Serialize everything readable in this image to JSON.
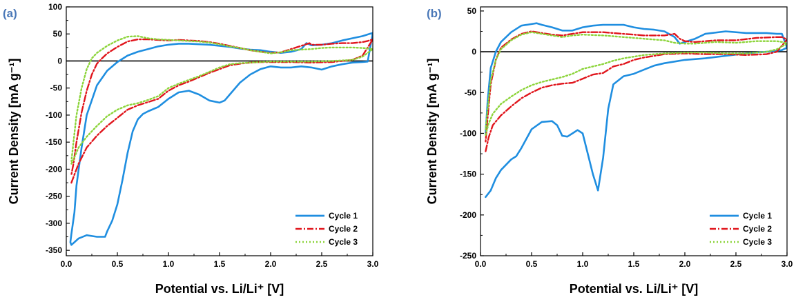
{
  "chart_data": [
    {
      "panel_label": "(a)",
      "type": "line",
      "xlabel": "Potential vs. Li/Li⁺ [V]",
      "ylabel": "Current Density [mA g⁻¹]",
      "xlim": [
        0.0,
        3.0
      ],
      "ylim": [
        -360,
        100
      ],
      "xticks": [
        0.0,
        0.5,
        1.0,
        1.5,
        2.0,
        2.5,
        3.0
      ],
      "xtick_labels": [
        "0.0",
        "0.5",
        "1.0",
        "1.5",
        "2.0",
        "2.5",
        "3.0"
      ],
      "yticks": [
        -350,
        -300,
        -250,
        -200,
        -150,
        -100,
        -50,
        0,
        50,
        100
      ],
      "ytick_labels": [
        "-350",
        "-300",
        "-250",
        "-200",
        "-150",
        "-100",
        "-50",
        "0",
        "50",
        "100"
      ],
      "zero_line": true,
      "grid": false,
      "legend_position": "bottom-right",
      "series": [
        {
          "name": "Cycle 1",
          "color": "#1f8ee0",
          "style": "solid",
          "x": [
            0.05,
            0.08,
            0.12,
            0.2,
            0.3,
            0.38,
            0.4,
            0.45,
            0.5,
            0.55,
            0.6,
            0.65,
            0.7,
            0.75,
            0.8,
            0.9,
            1.0,
            1.1,
            1.2,
            1.3,
            1.4,
            1.5,
            1.55,
            1.6,
            1.7,
            1.8,
            1.9,
            2.0,
            2.1,
            2.2,
            2.3,
            2.4,
            2.5,
            2.6,
            2.7,
            2.8,
            2.9,
            2.95,
            3.0,
            2.95,
            2.9,
            2.8,
            2.7,
            2.6,
            2.5,
            2.4,
            2.35,
            2.3,
            2.2,
            2.1,
            2.0,
            1.9,
            1.8,
            1.7,
            1.6,
            1.5,
            1.4,
            1.3,
            1.2,
            1.1,
            1.0,
            0.9,
            0.8,
            0.7,
            0.6,
            0.5,
            0.4,
            0.3,
            0.2,
            0.15,
            0.1,
            0.08,
            0.05,
            0.04,
            0.05
          ],
          "y": [
            -340,
            -335,
            -328,
            -322,
            -325,
            -325,
            -315,
            -295,
            -265,
            -220,
            -170,
            -130,
            -108,
            -98,
            -93,
            -85,
            -70,
            -58,
            -55,
            -62,
            -73,
            -77,
            -73,
            -62,
            -40,
            -25,
            -15,
            -10,
            -12,
            -12,
            -10,
            -12,
            -16,
            -10,
            -6,
            -3,
            -2,
            -1,
            52,
            49,
            46,
            42,
            38,
            33,
            30,
            29,
            33,
            22,
            17,
            15,
            17,
            20,
            21,
            23,
            26,
            28,
            30,
            31,
            32,
            32,
            30,
            27,
            22,
            17,
            10,
            -2,
            -18,
            -45,
            -100,
            -160,
            -230,
            -280,
            -320,
            -335,
            -340
          ]
        },
        {
          "name": "Cycle 2",
          "color": "#e0151c",
          "style": "dashdot",
          "x": [
            0.05,
            0.08,
            0.12,
            0.2,
            0.3,
            0.4,
            0.5,
            0.6,
            0.7,
            0.8,
            0.9,
            1.0,
            1.1,
            1.2,
            1.3,
            1.4,
            1.5,
            1.6,
            1.7,
            1.8,
            1.9,
            2.0,
            2.2,
            2.4,
            2.6,
            2.8,
            2.9,
            3.0,
            2.95,
            2.9,
            2.8,
            2.7,
            2.6,
            2.5,
            2.4,
            2.38,
            2.3,
            2.2,
            2.1,
            2.0,
            1.9,
            1.8,
            1.7,
            1.6,
            1.5,
            1.4,
            1.3,
            1.2,
            1.1,
            1.0,
            0.9,
            0.8,
            0.7,
            0.6,
            0.5,
            0.4,
            0.35,
            0.3,
            0.25,
            0.2,
            0.15,
            0.1,
            0.07,
            0.05
          ],
          "y": [
            -225,
            -210,
            -190,
            -160,
            -138,
            -120,
            -105,
            -90,
            -82,
            -76,
            -70,
            -55,
            -45,
            -38,
            -30,
            -22,
            -15,
            -8,
            -5,
            -3,
            -2,
            -2,
            -2,
            -3,
            -2,
            2,
            10,
            40,
            37,
            35,
            33,
            33,
            32,
            30,
            30,
            33,
            28,
            22,
            16,
            15,
            17,
            20,
            24,
            28,
            32,
            35,
            37,
            38,
            39,
            38,
            39,
            40,
            40,
            36,
            26,
            14,
            5,
            -5,
            -25,
            -55,
            -95,
            -150,
            -190,
            -210
          ]
        },
        {
          "name": "Cycle 3",
          "color": "#8cd43a",
          "style": "dotted",
          "x": [
            0.05,
            0.08,
            0.12,
            0.2,
            0.3,
            0.4,
            0.5,
            0.6,
            0.7,
            0.8,
            0.9,
            1.0,
            1.1,
            1.2,
            1.3,
            1.4,
            1.5,
            1.6,
            1.7,
            1.8,
            1.9,
            2.0,
            2.2,
            2.4,
            2.6,
            2.8,
            2.9,
            3.0,
            2.95,
            2.9,
            2.8,
            2.7,
            2.6,
            2.5,
            2.4,
            2.3,
            2.2,
            2.1,
            2.0,
            1.9,
            1.8,
            1.7,
            1.6,
            1.5,
            1.4,
            1.3,
            1.2,
            1.1,
            1.0,
            0.9,
            0.8,
            0.7,
            0.6,
            0.5,
            0.4,
            0.3,
            0.25,
            0.2,
            0.15,
            0.1,
            0.07,
            0.05
          ],
          "y": [
            -190,
            -178,
            -160,
            -140,
            -120,
            -102,
            -90,
            -82,
            -78,
            -72,
            -65,
            -50,
            -42,
            -35,
            -28,
            -20,
            -12,
            -6,
            -4,
            -3,
            -2,
            -1,
            -1,
            -1,
            0,
            2,
            8,
            22,
            23,
            24,
            25,
            25,
            25,
            24,
            22,
            21,
            20,
            16,
            14,
            17,
            20,
            24,
            27,
            31,
            34,
            36,
            37,
            38,
            39,
            40,
            42,
            46,
            45,
            38,
            28,
            15,
            5,
            -15,
            -50,
            -100,
            -150,
            -185
          ]
        }
      ]
    },
    {
      "panel_label": "(b)",
      "type": "line",
      "xlabel": "Potential vs. Li/Li⁺ [V]",
      "ylabel": "Current Density [mA g⁻¹]",
      "xlim": [
        0.0,
        3.0
      ],
      "ylim": [
        -250,
        55
      ],
      "xticks": [
        0.0,
        0.5,
        1.0,
        1.5,
        2.0,
        2.5,
        3.0
      ],
      "xtick_labels": [
        "0.0",
        "0.5",
        "1.0",
        "1.5",
        "2.0",
        "2.5",
        "3.0"
      ],
      "yticks": [
        -250,
        -200,
        -150,
        -100,
        -50,
        0,
        50
      ],
      "ytick_labels": [
        "-250",
        "-200",
        "-150",
        "-100",
        "-50",
        "0",
        "50"
      ],
      "zero_line": true,
      "grid": false,
      "legend_position": "bottom-right",
      "series": [
        {
          "name": "Cycle 1",
          "color": "#1f8ee0",
          "style": "solid",
          "x": [
            0.05,
            0.1,
            0.15,
            0.2,
            0.3,
            0.35,
            0.4,
            0.5,
            0.6,
            0.7,
            0.75,
            0.8,
            0.85,
            0.9,
            0.95,
            1.0,
            1.05,
            1.1,
            1.15,
            1.2,
            1.25,
            1.3,
            1.4,
            1.5,
            1.6,
            1.7,
            1.8,
            1.9,
            2.0,
            2.2,
            2.4,
            2.6,
            2.8,
            2.9,
            2.95,
            3.0,
            2.95,
            2.9,
            2.8,
            2.6,
            2.4,
            2.2,
            2.1,
            2.0,
            1.95,
            1.9,
            1.8,
            1.7,
            1.6,
            1.5,
            1.4,
            1.3,
            1.2,
            1.1,
            1.0,
            0.9,
            0.8,
            0.7,
            0.6,
            0.55,
            0.5,
            0.4,
            0.3,
            0.2,
            0.15,
            0.1,
            0.07,
            0.05
          ],
          "y": [
            -178,
            -170,
            -155,
            -145,
            -132,
            -128,
            -118,
            -95,
            -86,
            -85,
            -90,
            -103,
            -104,
            -100,
            -96,
            -100,
            -125,
            -150,
            -170,
            -130,
            -70,
            -40,
            -30,
            -27,
            -22,
            -17,
            -14,
            -12,
            -10,
            -8,
            -5,
            -2,
            0,
            1,
            2,
            5,
            22,
            22,
            23,
            23,
            25,
            22,
            16,
            12,
            10,
            18,
            25,
            27,
            28,
            30,
            33,
            33,
            33,
            32,
            30,
            26,
            26,
            30,
            33,
            35,
            34,
            32,
            24,
            12,
            0,
            -20,
            -60,
            -100
          ]
        },
        {
          "name": "Cycle 2",
          "color": "#e0151c",
          "style": "dashdot",
          "x": [
            0.05,
            0.08,
            0.12,
            0.2,
            0.3,
            0.4,
            0.5,
            0.6,
            0.7,
            0.8,
            0.9,
            1.0,
            1.1,
            1.2,
            1.3,
            1.4,
            1.5,
            1.6,
            1.8,
            2.0,
            2.2,
            2.4,
            2.6,
            2.8,
            2.9,
            3.0,
            2.95,
            2.9,
            2.7,
            2.5,
            2.3,
            2.1,
            2.0,
            1.95,
            1.9,
            1.8,
            1.6,
            1.4,
            1.2,
            1.0,
            0.9,
            0.8,
            0.7,
            0.6,
            0.5,
            0.4,
            0.3,
            0.2,
            0.15,
            0.1,
            0.07,
            0.05
          ],
          "y": [
            -122,
            -105,
            -90,
            -78,
            -67,
            -57,
            -50,
            -44,
            -41,
            -39,
            -38,
            -33,
            -28,
            -26,
            -18,
            -15,
            -10,
            -7,
            -3,
            -2,
            -3,
            -3,
            -4,
            -3,
            0,
            15,
            18,
            18,
            17,
            14,
            14,
            12,
            13,
            16,
            22,
            20,
            20,
            22,
            24,
            24,
            22,
            20,
            21,
            23,
            25,
            22,
            15,
            5,
            -10,
            -40,
            -80,
            -110
          ]
        },
        {
          "name": "Cycle 3",
          "color": "#8cd43a",
          "style": "dotted",
          "x": [
            0.05,
            0.08,
            0.12,
            0.2,
            0.3,
            0.4,
            0.5,
            0.6,
            0.7,
            0.8,
            0.9,
            1.0,
            1.1,
            1.2,
            1.3,
            1.4,
            1.5,
            1.6,
            1.8,
            2.0,
            2.2,
            2.4,
            2.6,
            2.8,
            2.9,
            3.0,
            2.95,
            2.9,
            2.7,
            2.5,
            2.3,
            2.1,
            2.0,
            1.9,
            1.8,
            1.6,
            1.4,
            1.2,
            1.0,
            0.9,
            0.8,
            0.7,
            0.6,
            0.5,
            0.4,
            0.3,
            0.2,
            0.15,
            0.1,
            0.07,
            0.05
          ],
          "y": [
            -102,
            -88,
            -76,
            -64,
            -55,
            -47,
            -41,
            -37,
            -34,
            -31,
            -27,
            -21,
            -18,
            -15,
            -11,
            -8,
            -6,
            -4,
            -2,
            -1,
            -1,
            -2,
            -2,
            0,
            3,
            10,
            12,
            13,
            13,
            11,
            12,
            10,
            10,
            11,
            14,
            16,
            18,
            20,
            21,
            20,
            18,
            20,
            22,
            24,
            21,
            14,
            3,
            -10,
            -35,
            -70,
            -95
          ]
        }
      ]
    }
  ]
}
